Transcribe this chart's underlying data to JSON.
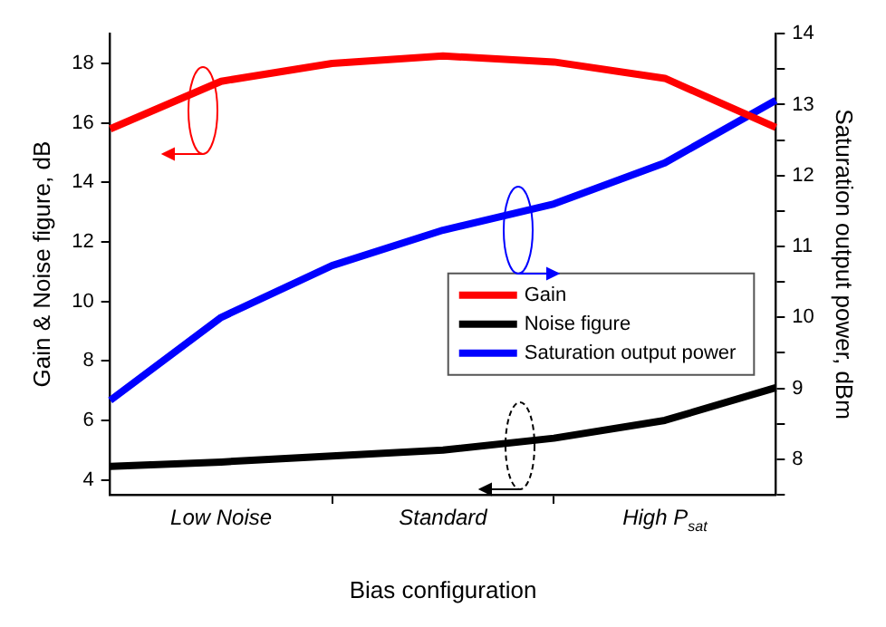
{
  "chart_data": {
    "type": "line",
    "xlabel": "Bias configuration",
    "ylabel": "Gain & Noise figure, dB",
    "y2label": "Saturation output power, dBm",
    "categories": [
      null,
      null,
      null,
      null,
      null,
      null,
      null
    ],
    "series": [
      {
        "name": "Gain",
        "color": "#ff0000",
        "values": [
          15.8,
          17.4,
          18.0,
          18.25,
          18.05,
          17.5,
          15.85
        ]
      },
      {
        "name": "Noise figure",
        "color": "#000000",
        "values": [
          4.45,
          4.6,
          4.8,
          5.0,
          5.4,
          6.0,
          7.1
        ]
      },
      {
        "name": "Saturation output power",
        "color": "#0000ff",
        "axis": "y2",
        "values": [
          8.83,
          10.0,
          10.73,
          11.23,
          11.6,
          12.18,
          13.06
        ]
      }
    ],
    "ylim": [
      3.5,
      19
    ],
    "yticks": [
      4,
      6,
      8,
      10,
      12,
      14,
      16,
      18
    ],
    "y2lim": [
      7.5,
      14
    ],
    "y2ticks": [
      {
        "value": 7.5,
        "label": null
      },
      8,
      {
        "value": 8.5,
        "label": null
      },
      9,
      {
        "value": 9.5,
        "label": null
      },
      10,
      {
        "value": 10.5,
        "label": null
      },
      11,
      {
        "value": 11.5,
        "label": null
      },
      12,
      {
        "value": 12.5,
        "label": null
      },
      13,
      {
        "value": 13.5,
        "label": null
      },
      14
    ],
    "annotations": [
      "Low Noise",
      "Standard",
      "High P$_{sat}$"
    ],
    "legend": "right",
    "grid": false,
    "marker": "none",
    "line_style": "solid"
  }
}
